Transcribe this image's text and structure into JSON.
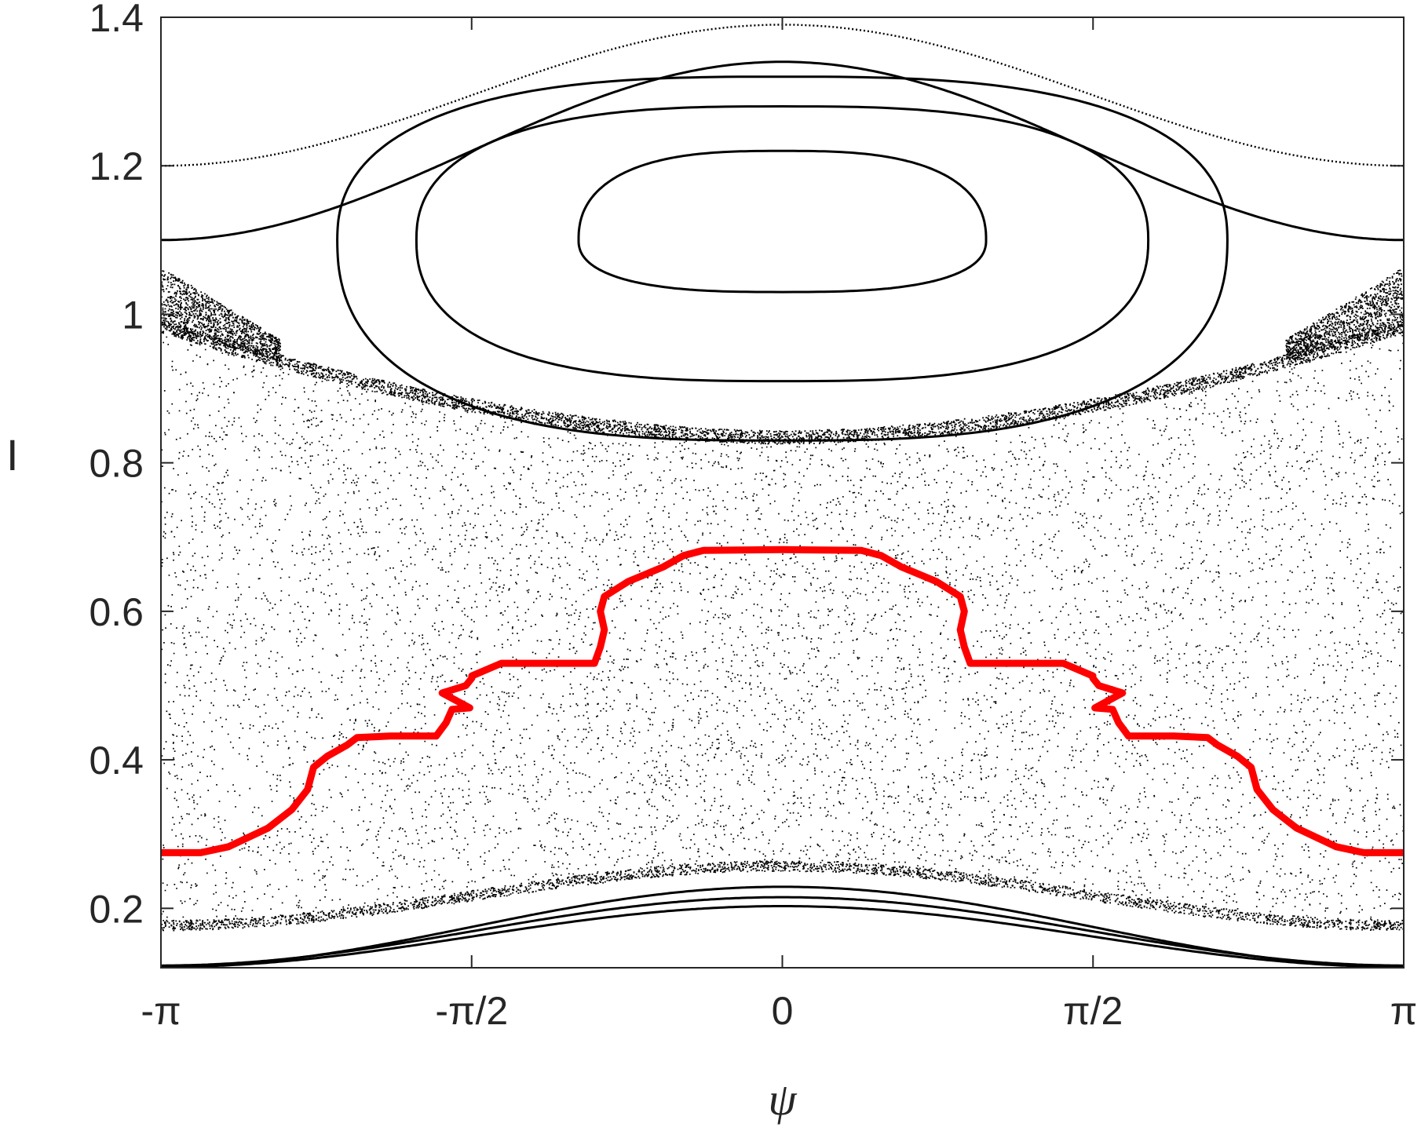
{
  "chart_data": {
    "type": "scatter",
    "title": "",
    "xlabel": "ψ",
    "ylabel": "I",
    "xlim": [
      -3.14159,
      3.14159
    ],
    "ylim": [
      0.12,
      1.4
    ],
    "x_ticks": [
      {
        "value": -3.14159,
        "label": "-π"
      },
      {
        "value": -1.5708,
        "label": "-π/2"
      },
      {
        "value": 0,
        "label": "0"
      },
      {
        "value": 1.5708,
        "label": "π/2"
      },
      {
        "value": 3.14159,
        "label": "π"
      }
    ],
    "y_ticks": [
      {
        "value": 0.2,
        "label": "0.2"
      },
      {
        "value": 0.4,
        "label": "0.4"
      },
      {
        "value": 0.6,
        "label": "0.6"
      },
      {
        "value": 0.8,
        "label": "0.8"
      },
      {
        "value": 1.0,
        "label": "1"
      },
      {
        "value": 1.2,
        "label": "1.2"
      },
      {
        "value": 1.4,
        "label": "1.4"
      }
    ],
    "grid": false,
    "legend": "none",
    "colors": {
      "points": "#000000",
      "highlight": "#ff0000",
      "axes": "#262626"
    },
    "series": [
      {
        "kind": "invariant-curves",
        "color": "#000000",
        "curves": [
          {
            "mean": 1.295,
            "amp": 0.095,
            "dotted": true
          },
          {
            "mean": 1.22,
            "amp": 0.12,
            "dotted": false
          },
          {
            "mean": 0.162,
            "amp": 0.041,
            "dotted": false
          },
          {
            "mean": 0.169,
            "amp": 0.046,
            "dotted": false
          },
          {
            "mean": 0.175,
            "amp": 0.054,
            "dotted": false
          }
        ]
      },
      {
        "kind": "islands",
        "color": "#000000",
        "center": [
          0,
          1.1
        ],
        "loops": [
          {
            "a": 1.03,
            "top": 1.22,
            "bottom": 1.03
          },
          {
            "a": 1.85,
            "top": 1.28,
            "bottom": 0.91
          },
          {
            "a": 2.25,
            "top": 1.32,
            "bottom": 0.83
          }
        ]
      },
      {
        "kind": "chaotic-sea",
        "color": "#000000",
        "lower_boundary": {
          "at_zero": 0.255,
          "at_pi": 0.175
        },
        "upper_boundary": {
          "at_zero": 0.835,
          "at_pi": 0.985
        }
      },
      {
        "kind": "highlight-curve",
        "color": "#ff0000",
        "points": [
          [
            -3.1416,
            0.275
          ],
          [
            -2.94,
            0.275
          ],
          [
            -2.8,
            0.283
          ],
          [
            -2.6,
            0.308
          ],
          [
            -2.48,
            0.333
          ],
          [
            -2.4,
            0.36
          ],
          [
            -2.37,
            0.39
          ],
          [
            -2.3,
            0.405
          ],
          [
            -2.2,
            0.42
          ],
          [
            -2.15,
            0.43
          ],
          [
            -1.98,
            0.432
          ],
          [
            -1.75,
            0.432
          ],
          [
            -1.7,
            0.45
          ],
          [
            -1.67,
            0.468
          ],
          [
            -1.58,
            0.47
          ],
          [
            -1.72,
            0.49
          ],
          [
            -1.6,
            0.5
          ],
          [
            -1.57,
            0.51
          ],
          [
            -1.57,
            0.513
          ],
          [
            -1.42,
            0.53
          ],
          [
            -1.35,
            0.53
          ],
          [
            -0.95,
            0.53
          ],
          [
            -0.92,
            0.552
          ],
          [
            -0.9,
            0.575
          ],
          [
            -0.92,
            0.6
          ],
          [
            -0.9,
            0.62
          ],
          [
            -0.78,
            0.64
          ],
          [
            -0.6,
            0.66
          ],
          [
            -0.5,
            0.675
          ],
          [
            -0.4,
            0.682
          ],
          [
            0,
            0.683
          ],
          [
            0.4,
            0.682
          ],
          [
            0.5,
            0.675
          ],
          [
            0.6,
            0.66
          ],
          [
            0.78,
            0.64
          ],
          [
            0.9,
            0.62
          ],
          [
            0.92,
            0.6
          ],
          [
            0.9,
            0.575
          ],
          [
            0.92,
            0.552
          ],
          [
            0.95,
            0.53
          ],
          [
            1.35,
            0.53
          ],
          [
            1.42,
            0.53
          ],
          [
            1.57,
            0.513
          ],
          [
            1.57,
            0.51
          ],
          [
            1.6,
            0.5
          ],
          [
            1.72,
            0.49
          ],
          [
            1.58,
            0.47
          ],
          [
            1.67,
            0.468
          ],
          [
            1.7,
            0.45
          ],
          [
            1.75,
            0.432
          ],
          [
            1.98,
            0.432
          ],
          [
            2.15,
            0.43
          ],
          [
            2.2,
            0.42
          ],
          [
            2.3,
            0.405
          ],
          [
            2.37,
            0.39
          ],
          [
            2.4,
            0.36
          ],
          [
            2.48,
            0.333
          ],
          [
            2.6,
            0.308
          ],
          [
            2.8,
            0.283
          ],
          [
            2.94,
            0.275
          ],
          [
            3.1416,
            0.275
          ]
        ]
      }
    ]
  }
}
